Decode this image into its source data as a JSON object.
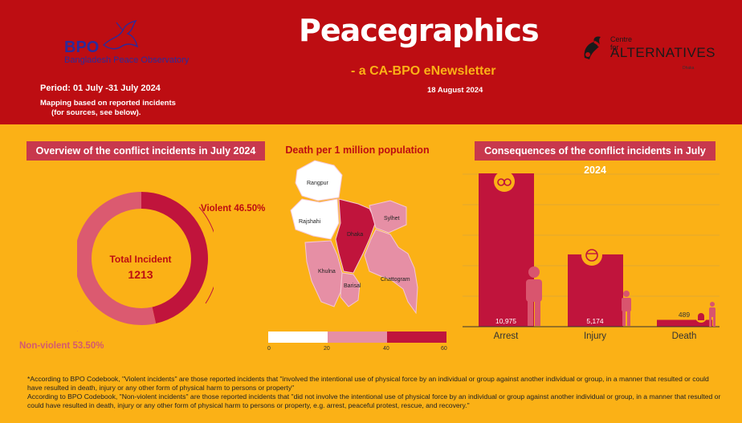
{
  "header": {
    "logo_mark": "BPO",
    "logo_name": "Bangladesh Peace Observatory",
    "period": "Period: 01 July -31 July 2024",
    "mapping_line1": "Mapping based on reported incidents",
    "mapping_line2": "(for sources, see below).",
    "title": "Peacegraphics",
    "subtitle": "- a CA-BPO eNewsletter",
    "date": "18 August 2024",
    "partner_small": "Centre for",
    "partner_big": "ALTERNATIVES",
    "partner_tiny": "Dhaka"
  },
  "overview": {
    "title": "Overview of the conflict incidents in July 2024",
    "total_label": "Total Incident",
    "total_value": "1213",
    "violent_label": "Violent 46.50%",
    "nonviolent_label": "Non-violent 53.50%",
    "violent_pct": 46.5,
    "nonviolent_pct": 53.5,
    "colors": {
      "violent": "#C0143C",
      "nonviolent": "#DB5A70"
    }
  },
  "map": {
    "title": "Death per 1 million population",
    "divisions": [
      "Rangpur",
      "Rajshahi",
      "Dhaka",
      "Sylhet",
      "Khulna",
      "Barisal",
      "Chattogram"
    ],
    "legend_ticks": [
      "0",
      "20",
      "40",
      "60"
    ],
    "colors": {
      "low": "#FFFFFF",
      "mid": "#E68FA5",
      "high": "#C0143C"
    }
  },
  "consequences": {
    "title": "Consequences of the conflict incidents in July 2024",
    "icons": [
      "handcuffs-icon",
      "injured-person-icon",
      "tombstone-icon"
    ]
  },
  "chart_data": {
    "type": "bar",
    "categories": [
      "Arrest",
      "Injury",
      "Death"
    ],
    "values": [
      10975,
      5174,
      489
    ],
    "value_labels": [
      "10,975",
      "5,174",
      "489"
    ],
    "title": "Consequences of the conflict incidents in July 2024",
    "xlabel": "",
    "ylabel": "",
    "ylim": [
      0,
      11500
    ],
    "grid": true,
    "colors": [
      "#C0143C"
    ]
  },
  "footnote": {
    "line1": "*According to BPO Codebook, \"Violent incidents\" are those reported incidents that \"involved the intentional use of physical force by an individual or group against another individual or group, in a manner that resulted or could have resulted in death, injury or any other form of physical harm to persons or property\"",
    "line2": "According to BPO Codebook, \"Non-violent incidents\" are those reported incidents that \"did not involve the intentional use of physical force by an individual or group against another individual or group, in a manner that resulted or could have resulted in death, injury or any other form of physical harm to persons or property, e.g. arrest, peaceful protest, rescue, and recovery.\""
  }
}
